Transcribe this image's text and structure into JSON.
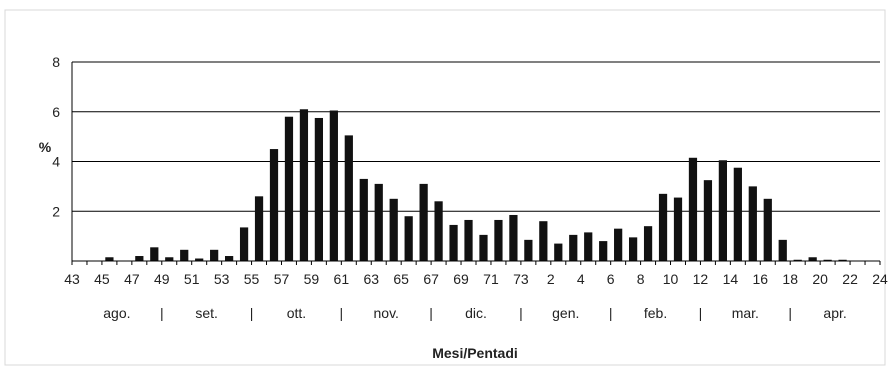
{
  "chart_data": {
    "type": "bar",
    "title": "",
    "xlabel": "Mesi/Pentadi",
    "ylabel": "%",
    "ylim": [
      0,
      8
    ],
    "y_ticks": [
      "2",
      "4",
      "6",
      "8"
    ],
    "grid": true,
    "bar_color": "#111111",
    "grid_color": "#000000",
    "categories": [
      "43",
      "44",
      "45",
      "46",
      "47",
      "48",
      "49",
      "50",
      "51",
      "52",
      "53",
      "54",
      "55",
      "56",
      "57",
      "58",
      "59",
      "60",
      "61",
      "62",
      "63",
      "64",
      "65",
      "66",
      "67",
      "68",
      "69",
      "70",
      "71",
      "72",
      "73",
      "1",
      "2",
      "3",
      "4",
      "5",
      "6",
      "7",
      "8",
      "9",
      "10",
      "11",
      "12",
      "13",
      "14",
      "15",
      "16",
      "17",
      "18",
      "19",
      "20",
      "21",
      "22",
      "23"
    ],
    "values": [
      0,
      0,
      0.15,
      0,
      0.2,
      0.55,
      0.15,
      0.45,
      0.1,
      0.45,
      0.2,
      1.35,
      2.6,
      4.5,
      5.8,
      6.1,
      5.75,
      6.05,
      5.05,
      3.3,
      3.1,
      2.5,
      1.8,
      3.1,
      2.4,
      1.45,
      1.65,
      1.05,
      1.65,
      1.85,
      0.85,
      1.6,
      0.7,
      1.05,
      1.15,
      0.8,
      1.3,
      0.95,
      1.4,
      2.7,
      2.55,
      4.15,
      3.25,
      4.05,
      3.75,
      3.0,
      2.5,
      0.85,
      0.05,
      0.15,
      0.05,
      0.05,
      0,
      0
    ],
    "x_tick_labels": [
      "43",
      "45",
      "47",
      "49",
      "51",
      "53",
      "55",
      "57",
      "59",
      "61",
      "63",
      "65",
      "67",
      "69",
      "71",
      "73",
      "2",
      "4",
      "6",
      "8",
      "10",
      "12",
      "14",
      "16",
      "18",
      "20",
      "22",
      "24"
    ],
    "months": [
      "ago.",
      "set.",
      "ott.",
      "nov.",
      "dic.",
      "gen.",
      "feb.",
      "mar.",
      "apr."
    ],
    "month_separator": "|"
  }
}
